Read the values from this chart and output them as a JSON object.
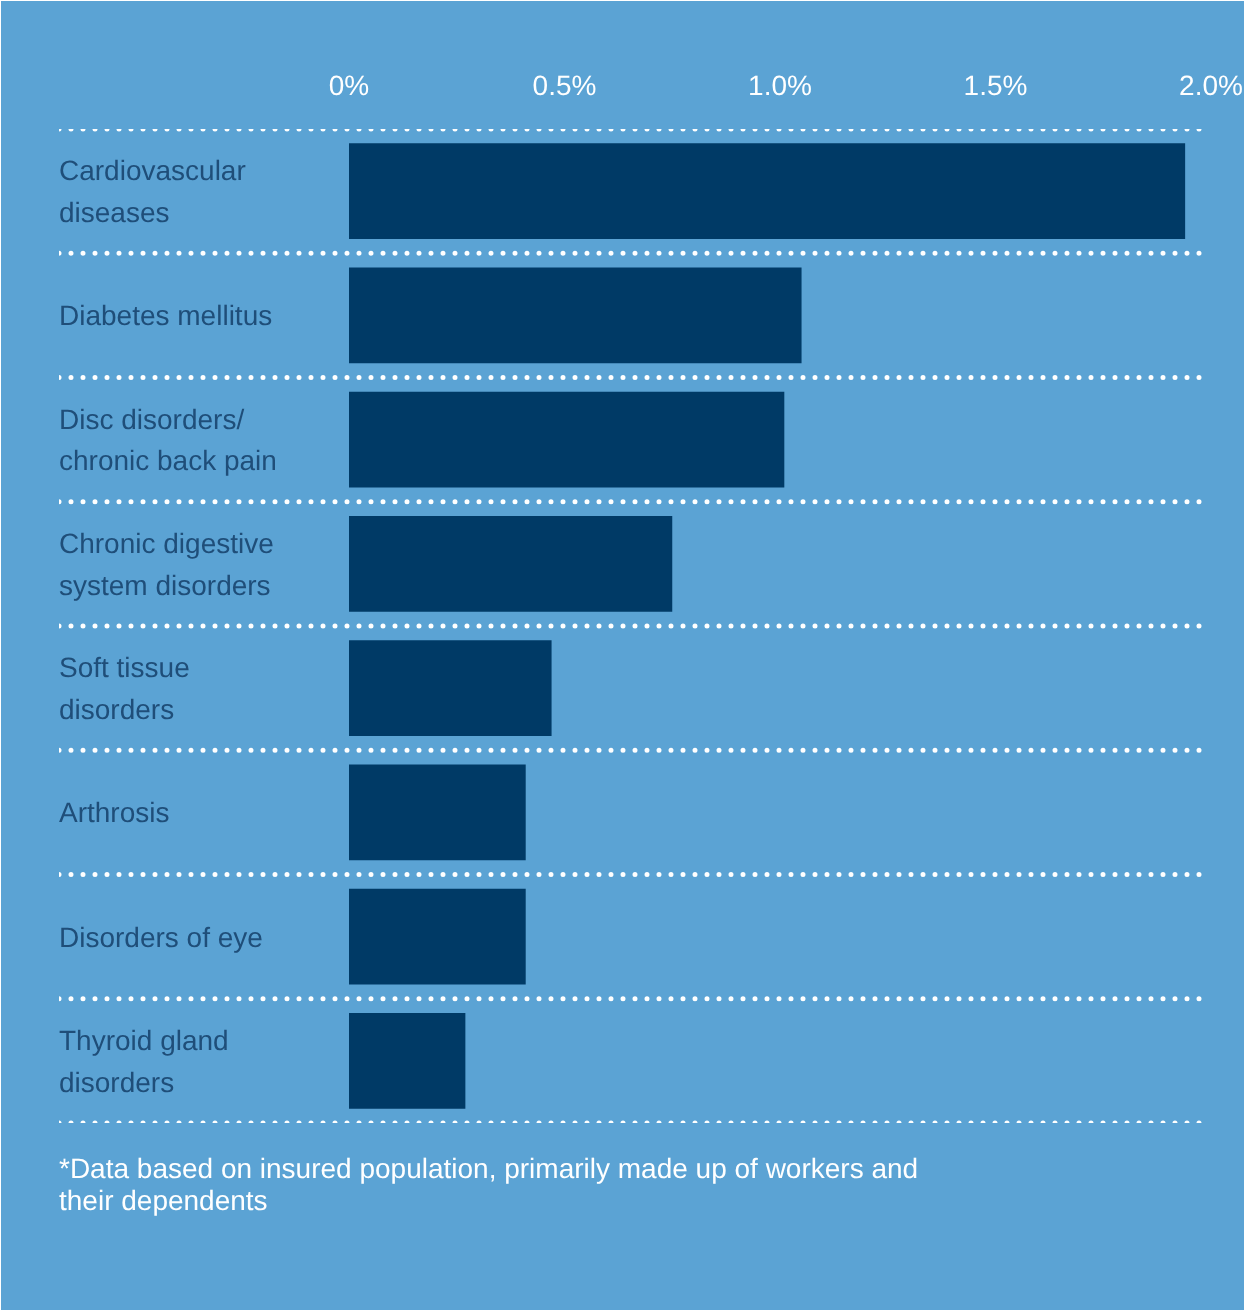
{
  "chart_data": {
    "type": "bar",
    "orientation": "horizontal",
    "categories": [
      "Cardiovascular diseases",
      "Diabetes mellitus",
      "Disc disorders/ chronic back pain",
      "Chronic digestive system disorders",
      "Soft tissue disorders",
      "Arthrosis",
      "Disorders of eye",
      "Thyroid gland disorders"
    ],
    "values": [
      1.94,
      1.05,
      1.01,
      0.75,
      0.47,
      0.41,
      0.41,
      0.27
    ],
    "color": "#003a66",
    "xlim": [
      0,
      2.0
    ],
    "xticks": [
      {
        "value": 0,
        "label": "0%"
      },
      {
        "value": 0.5,
        "label": "0.5%"
      },
      {
        "value": 1.0,
        "label": "1.0%"
      },
      {
        "value": 1.5,
        "label": "1.5%"
      },
      {
        "value": 2.0,
        "label": "2.0%"
      }
    ],
    "grid": "y",
    "annotations": [
      "*Data based on insured population, primarily made up of workers and their dependents"
    ]
  }
}
